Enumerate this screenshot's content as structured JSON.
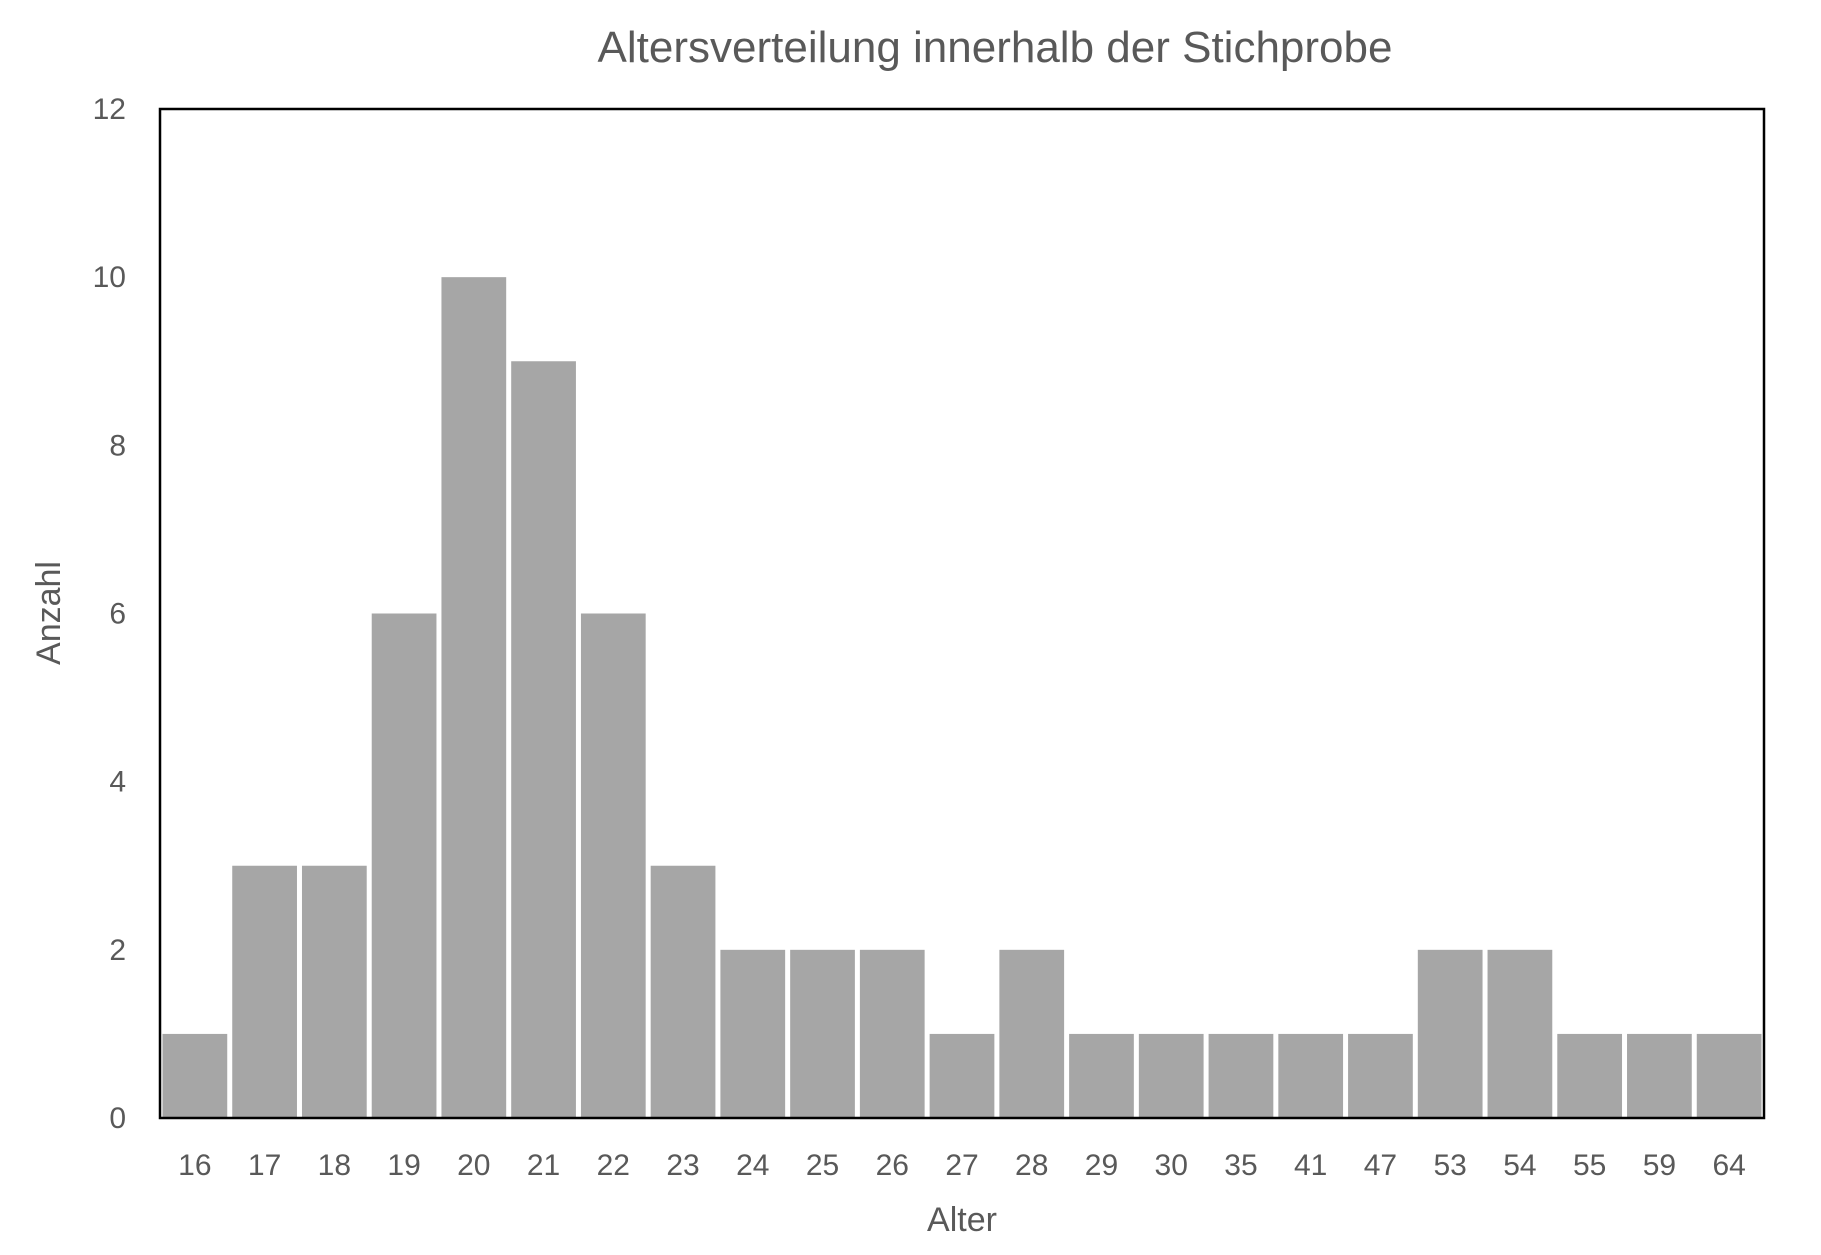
{
  "chart_data": {
    "type": "bar",
    "title": "Altersverteilung innerhalb der Stichprobe",
    "xlabel": "Alter",
    "ylabel": "Anzahl",
    "categories": [
      "16",
      "17",
      "18",
      "19",
      "20",
      "21",
      "22",
      "23",
      "24",
      "25",
      "26",
      "27",
      "28",
      "29",
      "30",
      "35",
      "41",
      "47",
      "53",
      "54",
      "55",
      "59",
      "64"
    ],
    "values": [
      1,
      3,
      3,
      6,
      10,
      9,
      6,
      3,
      2,
      2,
      2,
      1,
      2,
      1,
      1,
      1,
      1,
      1,
      2,
      2,
      1,
      1,
      1
    ],
    "ylim": [
      0,
      12
    ],
    "yticks": [
      "0",
      "2",
      "4",
      "6",
      "8",
      "10",
      "12"
    ],
    "grid": false,
    "legend": "none",
    "colors": {
      "bar": "#a6a6a6",
      "text": "#595959",
      "frame": "#000000"
    }
  }
}
